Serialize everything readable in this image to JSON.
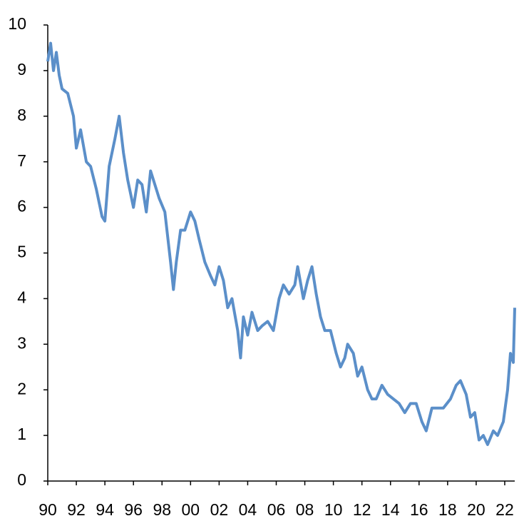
{
  "chart_data": {
    "type": "line",
    "x": [
      1990.0,
      1990.2,
      1990.4,
      1990.6,
      1990.8,
      1991.0,
      1991.4,
      1991.8,
      1992.0,
      1992.3,
      1992.7,
      1993.0,
      1993.4,
      1993.8,
      1994.0,
      1994.3,
      1994.7,
      1995.0,
      1995.3,
      1995.6,
      1996.0,
      1996.3,
      1996.6,
      1996.9,
      1997.2,
      1997.4,
      1997.8,
      1998.2,
      1998.6,
      1998.8,
      1999.0,
      1999.3,
      1999.6,
      2000.0,
      2000.3,
      2000.6,
      2001.0,
      2001.4,
      2001.7,
      2002.0,
      2002.3,
      2002.6,
      2002.9,
      2003.3,
      2003.5,
      2003.7,
      2004.0,
      2004.3,
      2004.7,
      2005.0,
      2005.4,
      2005.8,
      2006.2,
      2006.5,
      2006.9,
      2007.3,
      2007.5,
      2007.9,
      2008.2,
      2008.5,
      2008.8,
      2009.1,
      2009.4,
      2009.8,
      2010.2,
      2010.5,
      2010.8,
      2011.0,
      2011.4,
      2011.7,
      2012.0,
      2012.4,
      2012.7,
      2013.0,
      2013.4,
      2013.8,
      2014.2,
      2014.6,
      2015.0,
      2015.4,
      2015.8,
      2016.2,
      2016.5,
      2016.9,
      2017.3,
      2017.7,
      2018.2,
      2018.6,
      2018.9,
      2019.3,
      2019.6,
      2019.9,
      2020.2,
      2020.5,
      2020.8,
      2021.2,
      2021.5,
      2021.9,
      2022.2,
      2022.4,
      2022.6,
      2022.7
    ],
    "series": [
      {
        "color": "#5b8fc9",
        "values": [
          9.2,
          9.6,
          9.0,
          9.4,
          8.9,
          8.6,
          8.5,
          8.0,
          7.3,
          7.7,
          7.0,
          6.9,
          6.4,
          5.8,
          5.7,
          6.9,
          7.5,
          8.0,
          7.2,
          6.6,
          6.0,
          6.6,
          6.5,
          5.9,
          6.8,
          6.6,
          6.2,
          5.9,
          4.8,
          4.2,
          4.8,
          5.5,
          5.5,
          5.9,
          5.7,
          5.3,
          4.8,
          4.5,
          4.3,
          4.7,
          4.4,
          3.8,
          4.0,
          3.3,
          2.7,
          3.6,
          3.2,
          3.7,
          3.3,
          3.4,
          3.5,
          3.3,
          4.0,
          4.3,
          4.1,
          4.3,
          4.7,
          4.0,
          4.4,
          4.7,
          4.1,
          3.6,
          3.3,
          3.3,
          2.8,
          2.5,
          2.7,
          3.0,
          2.8,
          2.3,
          2.5,
          2.0,
          1.8,
          1.8,
          2.1,
          1.9,
          1.8,
          1.7,
          1.5,
          1.7,
          1.7,
          1.3,
          1.1,
          1.6,
          1.6,
          1.6,
          1.8,
          2.1,
          2.2,
          1.9,
          1.4,
          1.5,
          0.9,
          1.0,
          0.8,
          1.1,
          1.0,
          1.3,
          2.0,
          2.8,
          2.6,
          3.8
        ]
      }
    ],
    "xlim": [
      1990,
      2022.7
    ],
    "xticks": [
      {
        "value": 1990,
        "label": "90"
      },
      {
        "value": 1992,
        "label": "92"
      },
      {
        "value": 1994,
        "label": "94"
      },
      {
        "value": 1996,
        "label": "96"
      },
      {
        "value": 1998,
        "label": "98"
      },
      {
        "value": 2000,
        "label": "00"
      },
      {
        "value": 2002,
        "label": "02"
      },
      {
        "value": 2004,
        "label": "04"
      },
      {
        "value": 2006,
        "label": "06"
      },
      {
        "value": 2008,
        "label": "08"
      },
      {
        "value": 2010,
        "label": "10"
      },
      {
        "value": 2012,
        "label": "12"
      },
      {
        "value": 2014,
        "label": "14"
      },
      {
        "value": 2016,
        "label": "16"
      },
      {
        "value": 2018,
        "label": "18"
      },
      {
        "value": 2020,
        "label": "20"
      },
      {
        "value": 2022,
        "label": "22"
      }
    ],
    "ylim": [
      0,
      10
    ],
    "yticks": [
      0,
      1,
      2,
      3,
      4,
      5,
      6,
      7,
      8,
      9,
      10
    ]
  }
}
